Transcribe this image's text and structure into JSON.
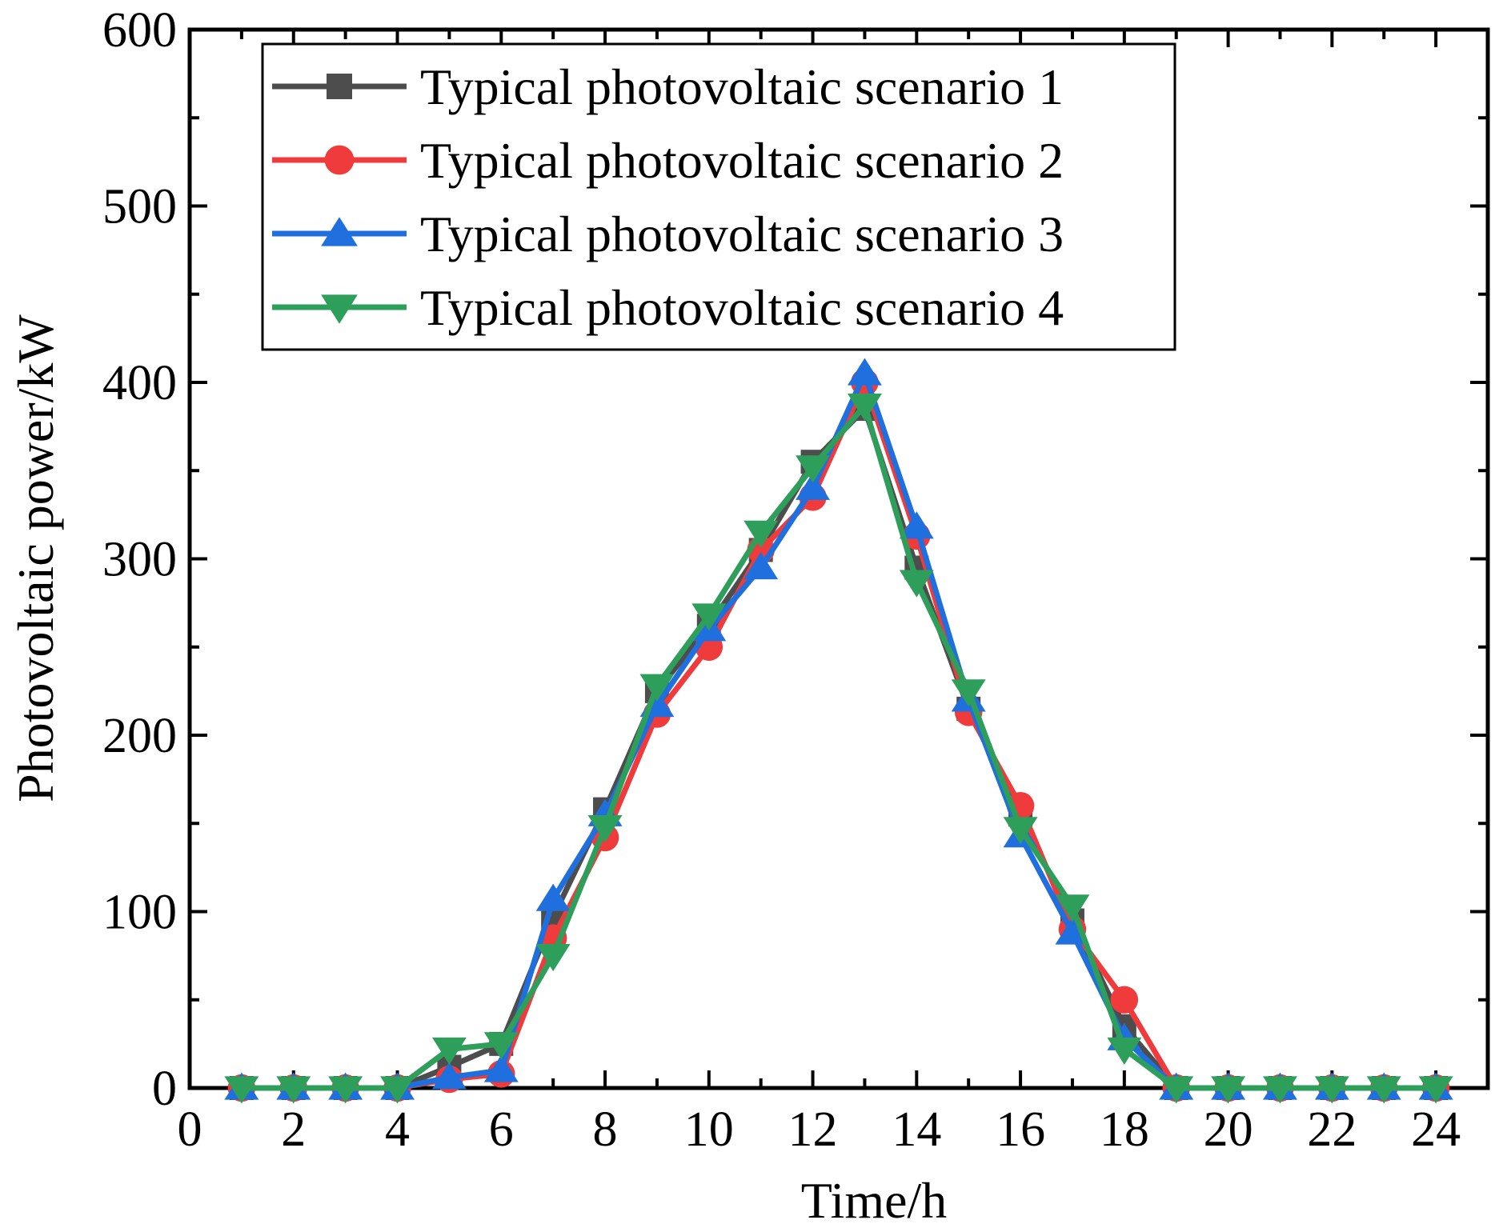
{
  "chart_data": {
    "type": "line",
    "title": "",
    "xlabel": "Time/h",
    "ylabel": "Photovoltaic power/kW",
    "xlim": [
      0,
      25
    ],
    "ylim": [
      0,
      600
    ],
    "x_ticks": [
      0,
      2,
      4,
      6,
      8,
      10,
      12,
      14,
      16,
      18,
      20,
      22,
      24
    ],
    "y_ticks": [
      0,
      100,
      200,
      300,
      400,
      500,
      600
    ],
    "x_tick_labels": [
      "0",
      "2",
      "4",
      "6",
      "8",
      "10",
      "12",
      "14",
      "16",
      "18",
      "20",
      "22",
      "24"
    ],
    "y_tick_labels": [
      "0",
      "100",
      "200",
      "300",
      "400",
      "500",
      "600"
    ],
    "grid": false,
    "legend_position": "top-left",
    "x": [
      1,
      2,
      3,
      4,
      5,
      6,
      7,
      8,
      9,
      10,
      11,
      12,
      13,
      14,
      15,
      16,
      17,
      18,
      19,
      20,
      21,
      22,
      23,
      24
    ],
    "series": [
      {
        "name": "Typical photovoltaic scenario 1",
        "color": "#4d4d4d",
        "marker": "square",
        "values": [
          0,
          0,
          0,
          0,
          12,
          25,
          97,
          158,
          225,
          262,
          305,
          355,
          385,
          295,
          215,
          155,
          95,
          35,
          0,
          0,
          0,
          0,
          0,
          0
        ]
      },
      {
        "name": "Typical photovoltaic scenario 2",
        "color": "#ef3b3b",
        "marker": "circle",
        "values": [
          0,
          0,
          0,
          0,
          5,
          8,
          85,
          142,
          212,
          250,
          305,
          335,
          400,
          313,
          213,
          160,
          90,
          50,
          0,
          0,
          0,
          0,
          0,
          0
        ]
      },
      {
        "name": "Typical photovoltaic scenario 3",
        "color": "#1f6fde",
        "marker": "triangle-up",
        "values": [
          0,
          0,
          0,
          0,
          6,
          10,
          107,
          155,
          217,
          260,
          295,
          340,
          405,
          318,
          220,
          143,
          88,
          28,
          0,
          0,
          0,
          0,
          0,
          0
        ]
      },
      {
        "name": "Typical photovoltaic scenario 4",
        "color": "#2e9e5b",
        "marker": "triangle-down",
        "values": [
          0,
          0,
          0,
          0,
          22,
          25,
          75,
          148,
          228,
          268,
          315,
          352,
          387,
          287,
          225,
          147,
          103,
          22,
          0,
          0,
          0,
          0,
          0,
          0
        ]
      }
    ]
  }
}
